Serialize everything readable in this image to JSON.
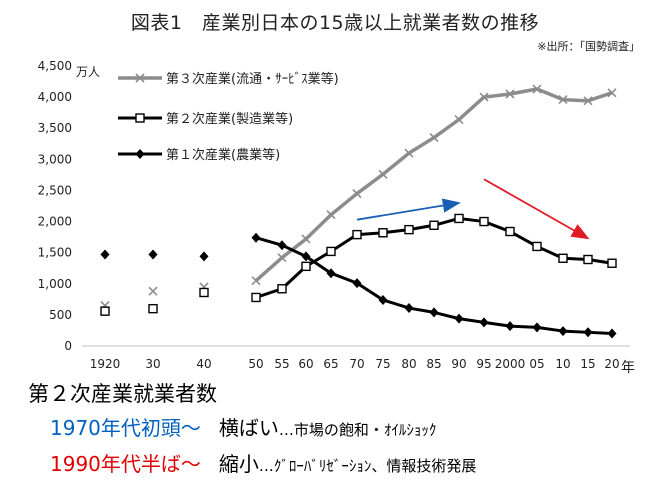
{
  "page": {
    "title": "図表1　産業別日本の15歳以上就業者数の推移",
    "source": "※出所：「国勢調査」"
  },
  "chart_data": {
    "type": "line",
    "x": [
      "1920",
      "30",
      "40",
      "50",
      "55",
      "60",
      "65",
      "70",
      "75",
      "80",
      "85",
      "90",
      "95",
      "2000",
      "05",
      "10",
      "15",
      "20"
    ],
    "x_suffix": "年",
    "y_unit": "万人",
    "ylim": [
      0,
      4500
    ],
    "yticks": [
      "0",
      "500",
      "1,000",
      "1,500",
      "2,000",
      "2,500",
      "3,000",
      "3,500",
      "4,000",
      "4,500"
    ],
    "legend_position": "top-left",
    "series": [
      {
        "name": "第３次産業(流通・ｻｰﾋﾞｽ業等)",
        "color": "#8c8c8c",
        "marker": "x",
        "values": [
          650,
          880,
          950,
          1050,
          1420,
          1720,
          2110,
          2450,
          2760,
          3100,
          3350,
          3640,
          4000,
          4050,
          4130,
          3960,
          3940,
          4070
        ]
      },
      {
        "name": "第２次産業(製造業等)",
        "color": "#000000",
        "marker": "square-open",
        "values": [
          560,
          600,
          860,
          780,
          920,
          1280,
          1520,
          1790,
          1820,
          1870,
          1940,
          2050,
          2000,
          1840,
          1600,
          1410,
          1390,
          1330
        ]
      },
      {
        "name": "第１次産業(農業等)",
        "color": "#000000",
        "marker": "diamond",
        "values": [
          1470,
          1470,
          1440,
          1740,
          1620,
          1440,
          1170,
          1010,
          740,
          610,
          540,
          440,
          380,
          320,
          300,
          240,
          220,
          200
        ]
      }
    ],
    "annotations": [
      {
        "type": "arrow",
        "color": "#1a5fb4",
        "from": {
          "x": "70",
          "y": 2030
        },
        "to": {
          "x": "90",
          "y": 2300
        }
      },
      {
        "type": "arrow",
        "color": "#e01b24",
        "from": {
          "x": "95",
          "y": 2680
        },
        "to": {
          "x": "15",
          "y": 1730
        }
      }
    ]
  },
  "text": {
    "heading": "第２次産業就業者数",
    "line1_period": "1970年代初頭～",
    "line1_trend": "横ばい",
    "line1_note": "…市場の飽和・ｵｲﾙｼｮｯｸ",
    "line2_period": "1990年代半ば～",
    "line2_trend": "縮小",
    "line2_note": "…ｸﾞﾛｰﾊﾞﾘｾﾞｰｼｮﾝ、情報技術発展"
  }
}
